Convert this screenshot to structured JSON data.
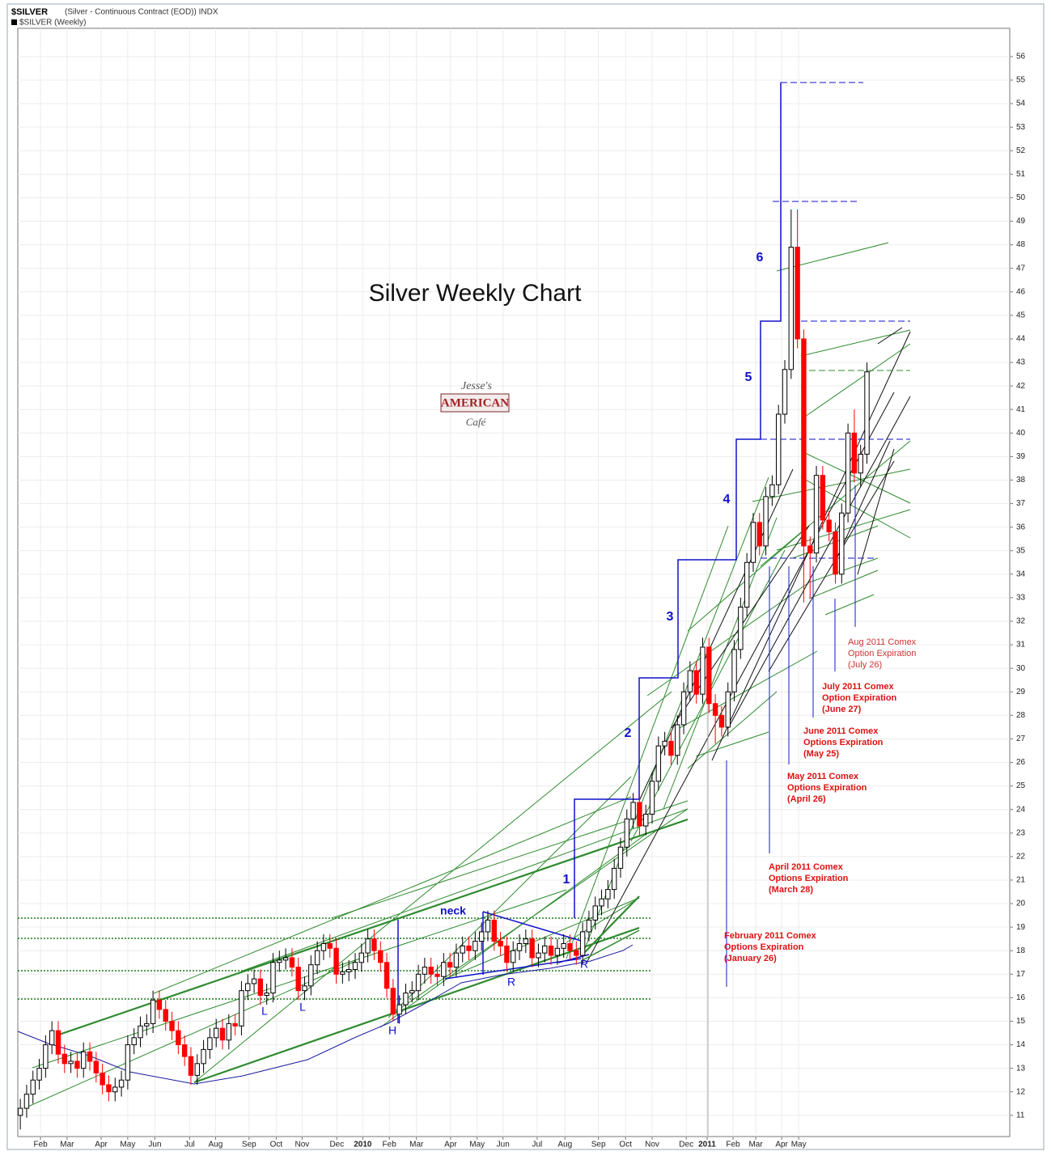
{
  "header": {
    "symbol": "$SILVER",
    "description": "(Silver - Continuous Contract (EOD)) INDX",
    "legend": "$SILVER (Weekly)"
  },
  "chart_data": {
    "type": "candlestick",
    "title": "Silver Weekly Chart",
    "up_color": "#ffffff",
    "down_color": "#ff0000",
    "grid": true,
    "ylim": [
      10.1,
      57.2
    ],
    "yticks": [
      11,
      12,
      13,
      14,
      15,
      16,
      17,
      18,
      19,
      20,
      21,
      22,
      23,
      24,
      25,
      26,
      27,
      28,
      29,
      30,
      31,
      32,
      33,
      34,
      35,
      36,
      37,
      38,
      39,
      40,
      41,
      42,
      43,
      44,
      45,
      46,
      47,
      48,
      49,
      50,
      51,
      52,
      53,
      54,
      55,
      56
    ],
    "xlim": [
      -0.4,
      156.6
    ],
    "xticks": [
      {
        "value": 3.2,
        "label": "Feb"
      },
      {
        "value": 7.4,
        "label": "Mar"
      },
      {
        "value": 12.8,
        "label": "Apr"
      },
      {
        "value": 17.0,
        "label": "May"
      },
      {
        "value": 21.3,
        "label": "Jun"
      },
      {
        "value": 26.8,
        "label": "Jul"
      },
      {
        "value": 30.9,
        "label": "Aug"
      },
      {
        "value": 36.2,
        "label": "Sep"
      },
      {
        "value": 40.5,
        "label": "Oct"
      },
      {
        "value": 44.6,
        "label": "Nov"
      },
      {
        "value": 50.1,
        "label": "Dec"
      },
      {
        "value": 54.2,
        "label": "2010"
      },
      {
        "value": 58.4,
        "label": "Feb"
      },
      {
        "value": 62.7,
        "label": "Mar"
      },
      {
        "value": 68.1,
        "label": "Apr"
      },
      {
        "value": 72.3,
        "label": "May"
      },
      {
        "value": 76.4,
        "label": "Jun"
      },
      {
        "value": 81.8,
        "label": "Jul"
      },
      {
        "value": 86.2,
        "label": "Aug"
      },
      {
        "value": 91.5,
        "label": "Sep"
      },
      {
        "value": 95.8,
        "label": "Oct"
      },
      {
        "value": 100.0,
        "label": "Nov"
      },
      {
        "value": 105.4,
        "label": "Dec"
      },
      {
        "value": 108.7,
        "label": "2011"
      },
      {
        "value": 112.8,
        "label": "Feb"
      },
      {
        "value": 116.4,
        "label": "Mar"
      },
      {
        "value": 120.5,
        "label": "Apr"
      },
      {
        "value": 123.2,
        "label": "May"
      }
    ],
    "x": [
      0,
      1,
      2,
      3,
      4,
      5,
      6,
      7,
      8,
      9,
      10,
      11,
      12,
      13,
      14,
      15,
      16,
      17,
      18,
      19,
      20,
      21,
      22,
      23,
      24,
      25,
      26,
      27,
      28,
      29,
      30,
      31,
      32,
      33,
      34,
      35,
      36,
      37,
      38,
      39,
      40,
      41,
      42,
      43,
      44,
      45,
      46,
      47,
      48,
      49,
      50,
      51,
      52,
      53,
      54,
      55,
      56,
      57,
      58,
      59,
      60,
      61,
      62,
      63,
      64,
      65,
      66,
      67,
      68,
      69,
      70,
      71,
      72,
      73,
      74,
      75,
      76,
      77,
      78,
      79,
      80,
      81,
      82,
      83,
      84,
      85,
      86,
      87,
      88,
      89,
      90,
      91,
      92,
      93,
      94,
      95,
      96,
      97,
      98,
      99,
      100,
      101,
      102,
      103,
      104,
      105,
      106,
      107,
      108,
      109,
      110,
      111,
      112,
      113,
      114,
      115,
      116,
      117,
      118,
      119,
      120,
      121,
      122,
      123,
      124,
      125,
      126,
      127,
      128,
      129,
      130,
      131,
      132,
      133,
      134
    ],
    "open": [
      11.0,
      11.3,
      11.9,
      12.5,
      13.0,
      14.0,
      14.6,
      13.6,
      13.2,
      13.3,
      13.0,
      13.7,
      13.3,
      12.8,
      12.3,
      12.0,
      12.2,
      12.5,
      14.0,
      14.3,
      14.8,
      14.9,
      15.9,
      15.5,
      15.0,
      14.6,
      14.0,
      13.5,
      12.7,
      13.2,
      13.8,
      14.3,
      14.7,
      14.2,
      14.9,
      14.8,
      16.3,
      16.6,
      16.8,
      16.1,
      16.2,
      17.5,
      17.6,
      17.7,
      17.3,
      16.3,
      16.5,
      17.4,
      18.0,
      18.3,
      18.1,
      17.0,
      17.1,
      17.2,
      17.5,
      17.9,
      18.5,
      18.0,
      17.5,
      16.4,
      15.3,
      15.7,
      16.2,
      16.3,
      17.0,
      17.3,
      17.0,
      16.9,
      17.5,
      17.3,
      17.9,
      18.2,
      18.0,
      18.4,
      18.8,
      19.3,
      18.4,
      18.2,
      17.5,
      18.0,
      18.3,
      18.5,
      17.7,
      17.9,
      18.2,
      17.8,
      18.1,
      18.3,
      18.0,
      17.8,
      18.8,
      19.3,
      19.9,
      20.2,
      20.6,
      21.5,
      22.4,
      23.6,
      24.3,
      23.3,
      23.8,
      25.2,
      26.7,
      26.9,
      26.3,
      27.6,
      29.0,
      29.9,
      28.9,
      30.9,
      28.5,
      28.0,
      27.5,
      29.0,
      30.8,
      32.6,
      34.5,
      36.2,
      35.2,
      37.3,
      37.8,
      40.8,
      42.7,
      47.9,
      44.0,
      35.2,
      34.9,
      38.2,
      36.3,
      35.8,
      34.0,
      36.6,
      40.0,
      38.3,
      39.1
    ],
    "high": [
      11.7,
      12.3,
      12.9,
      13.4,
      14.4,
      15.0,
      15.0,
      14.0,
      13.7,
      13.7,
      14.1,
      14.1,
      13.7,
      13.2,
      12.7,
      12.6,
      12.9,
      14.4,
      14.7,
      15.2,
      15.3,
      16.3,
      16.3,
      15.9,
      15.4,
      15.0,
      14.4,
      13.9,
      13.6,
      14.2,
      14.7,
      15.1,
      15.1,
      15.3,
      15.3,
      16.7,
      17.0,
      17.2,
      17.2,
      16.6,
      17.9,
      18.0,
      18.1,
      18.1,
      17.7,
      16.9,
      17.8,
      18.4,
      18.7,
      18.7,
      18.5,
      17.5,
      17.6,
      17.9,
      18.3,
      18.9,
      18.9,
      18.4,
      17.9,
      16.8,
      16.1,
      16.6,
      16.7,
      17.4,
      17.7,
      17.7,
      17.4,
      17.9,
      17.9,
      18.3,
      18.6,
      18.6,
      18.8,
      19.2,
      19.7,
      19.7,
      18.8,
      18.6,
      18.4,
      18.7,
      18.9,
      18.9,
      18.3,
      18.6,
      18.6,
      18.5,
      18.7,
      18.7,
      18.4,
      19.2,
      19.7,
      20.3,
      20.6,
      21.0,
      21.9,
      22.8,
      24.0,
      24.7,
      24.7,
      24.2,
      25.6,
      27.1,
      27.3,
      27.3,
      28.0,
      29.4,
      30.3,
      30.3,
      31.3,
      31.3,
      28.9,
      28.4,
      29.4,
      31.2,
      33.0,
      34.9,
      36.6,
      36.6,
      37.7,
      38.2,
      41.2,
      43.1,
      49.5,
      49.5,
      44.4,
      35.6,
      38.6,
      38.6,
      36.7,
      36.2,
      37.0,
      40.4,
      41.0,
      39.5,
      43.0
    ],
    "low": [
      10.4,
      10.9,
      11.5,
      12.1,
      12.6,
      13.6,
      13.2,
      12.8,
      12.8,
      12.6,
      12.6,
      12.9,
      12.4,
      11.9,
      11.6,
      11.6,
      11.8,
      12.1,
      13.6,
      13.9,
      14.4,
      14.5,
      15.1,
      14.6,
      14.2,
      13.6,
      13.1,
      12.3,
      12.3,
      12.8,
      13.4,
      13.9,
      13.8,
      13.8,
      14.4,
      14.4,
      15.9,
      16.2,
      15.7,
      15.7,
      15.8,
      17.1,
      17.2,
      16.9,
      15.9,
      15.9,
      16.1,
      17.0,
      17.6,
      17.7,
      16.6,
      16.6,
      16.7,
      16.8,
      17.1,
      17.5,
      17.6,
      17.1,
      16.0,
      15.0,
      14.9,
      15.3,
      15.8,
      15.9,
      16.6,
      16.6,
      16.5,
      16.5,
      16.9,
      16.9,
      17.5,
      17.6,
      17.6,
      18.0,
      18.4,
      18.0,
      17.8,
      17.1,
      17.1,
      17.6,
      17.9,
      17.3,
      17.3,
      17.5,
      17.4,
      17.4,
      17.7,
      17.6,
      17.4,
      17.4,
      18.4,
      18.9,
      19.5,
      19.8,
      20.2,
      21.1,
      22.0,
      23.2,
      22.9,
      22.9,
      23.4,
      24.8,
      26.3,
      25.9,
      25.9,
      27.2,
      28.6,
      28.5,
      28.5,
      28.1,
      26.8,
      27.1,
      27.1,
      28.6,
      30.4,
      32.2,
      34.1,
      34.8,
      34.8,
      36.9,
      37.4,
      40.4,
      42.3,
      43.6,
      32.8,
      33.0,
      34.5,
      35.9,
      35.4,
      33.6,
      33.6,
      36.2,
      37.9,
      37.7,
      38.7
    ],
    "close": [
      11.3,
      11.9,
      12.5,
      13.0,
      14.0,
      14.6,
      13.6,
      13.2,
      13.3,
      13.0,
      13.7,
      13.3,
      12.8,
      12.3,
      12.0,
      12.2,
      12.5,
      14.0,
      14.3,
      14.8,
      14.9,
      15.9,
      15.5,
      15.0,
      14.6,
      14.0,
      13.5,
      12.7,
      13.2,
      13.8,
      14.3,
      14.7,
      14.2,
      14.9,
      14.8,
      16.3,
      16.6,
      16.8,
      16.1,
      16.2,
      17.5,
      17.6,
      17.7,
      17.3,
      16.3,
      16.5,
      17.4,
      18.0,
      18.3,
      18.1,
      17.0,
      17.1,
      17.2,
      17.5,
      17.9,
      18.5,
      18.0,
      17.5,
      16.4,
      15.3,
      15.7,
      16.2,
      16.3,
      17.0,
      17.3,
      17.0,
      16.9,
      17.5,
      17.3,
      17.9,
      18.2,
      18.0,
      18.4,
      18.8,
      19.3,
      18.4,
      18.2,
      17.5,
      18.0,
      18.3,
      18.5,
      17.7,
      17.9,
      18.2,
      17.8,
      18.1,
      18.3,
      18.0,
      17.8,
      18.8,
      19.3,
      19.9,
      20.2,
      20.6,
      21.5,
      22.4,
      23.6,
      24.3,
      23.3,
      23.8,
      25.2,
      26.7,
      26.9,
      26.3,
      27.6,
      29.0,
      29.9,
      28.9,
      30.9,
      28.5,
      28.0,
      27.5,
      29.0,
      30.8,
      32.6,
      34.5,
      36.2,
      35.2,
      37.3,
      37.8,
      40.8,
      42.7,
      47.9,
      44.0,
      35.2,
      34.9,
      38.2,
      36.3,
      35.8,
      34.0,
      36.6,
      40.0,
      38.3,
      39.1,
      42.6
    ],
    "annotations": {
      "waves": [
        "1",
        "2",
        "3",
        "4",
        "5",
        "6"
      ],
      "pattern_labels": [
        "neck",
        "L",
        "L",
        "H",
        "R",
        "R"
      ],
      "expirations": [
        [
          "February 2011 Comex",
          "Options Expiration",
          "(January 26)"
        ],
        [
          "April 2011 Comex",
          "Options Expiration",
          "(March 28)"
        ],
        [
          "May 2011 Comex",
          "Options Expiration",
          "(April 26)"
        ],
        [
          "June 2011 Comex",
          "Options Expiration",
          "(May 25)"
        ],
        [
          "July 2011 Comex",
          "Option Expiration",
          "(June 27)"
        ],
        [
          "Aug 2011 Comex",
          "Option Expiration",
          "(July 26)"
        ]
      ],
      "logo": [
        "Jesse's",
        "AMERICAN",
        "Café"
      ]
    }
  }
}
